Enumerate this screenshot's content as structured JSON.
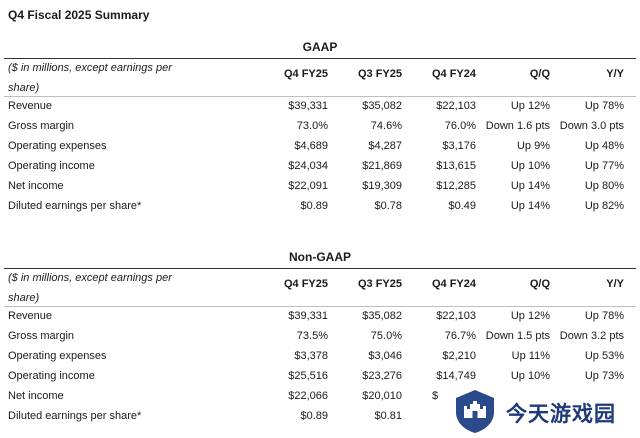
{
  "title": "Q4 Fiscal 2025 Summary",
  "gaap": {
    "section_title": "GAAP",
    "note": "($ in millions, except earnings per share)",
    "columns": [
      "Q4 FY25",
      "Q3 FY25",
      "Q4 FY24",
      "Q/Q",
      "Y/Y"
    ],
    "rows": [
      {
        "label": "Revenue",
        "values": [
          "$39,331",
          "$35,082",
          "$22,103",
          "Up 12%",
          "Up 78%"
        ]
      },
      {
        "label": "Gross margin",
        "values": [
          "73.0%",
          "74.6%",
          "76.0%",
          "Down 1.6 pts",
          "Down 3.0 pts"
        ]
      },
      {
        "label": "Operating expenses",
        "values": [
          "$4,689",
          "$4,287",
          "$3,176",
          "Up 9%",
          "Up 48%"
        ]
      },
      {
        "label": "Operating income",
        "values": [
          "$24,034",
          "$21,869",
          "$13,615",
          "Up 10%",
          "Up 77%"
        ]
      },
      {
        "label": "Net income",
        "values": [
          "$22,091",
          "$19,309",
          "$12,285",
          "Up 14%",
          "Up 80%"
        ]
      },
      {
        "label": "Diluted earnings per share*",
        "values": [
          "$0.89",
          "$0.78",
          "$0.49",
          "Up 14%",
          "Up 82%"
        ]
      }
    ]
  },
  "non_gaap": {
    "section_title": "Non-GAAP",
    "note": "($ in millions, except earnings per share)",
    "columns": [
      "Q4 FY25",
      "Q3 FY25",
      "Q4 FY24",
      "Q/Q",
      "Y/Y"
    ],
    "rows": [
      {
        "label": "Revenue",
        "values": [
          "$39,331",
          "$35,082",
          "$22,103",
          "Up 12%",
          "Up 78%"
        ]
      },
      {
        "label": "Gross margin",
        "values": [
          "73.5%",
          "75.0%",
          "76.7%",
          "Down 1.5 pts",
          "Down 3.2 pts"
        ]
      },
      {
        "label": "Operating expenses",
        "values": [
          "$3,378",
          "$3,046",
          "$2,210",
          "Up 11%",
          "Up 53%"
        ]
      },
      {
        "label": "Operating income",
        "values": [
          "$25,516",
          "$23,276",
          "$14,749",
          "Up 10%",
          "Up 73%"
        ]
      },
      {
        "label": "Net income",
        "values": [
          "$22,066",
          "$20,010",
          "$",
          "",
          ""
        ]
      },
      {
        "label": "Diluted earnings per share*",
        "values": [
          "$0.89",
          "$0.81",
          "",
          "",
          ""
        ]
      }
    ]
  },
  "watermark": {
    "text": "今天游戏园",
    "logo": "castle-shield-icon",
    "color": "#1e3a78"
  }
}
